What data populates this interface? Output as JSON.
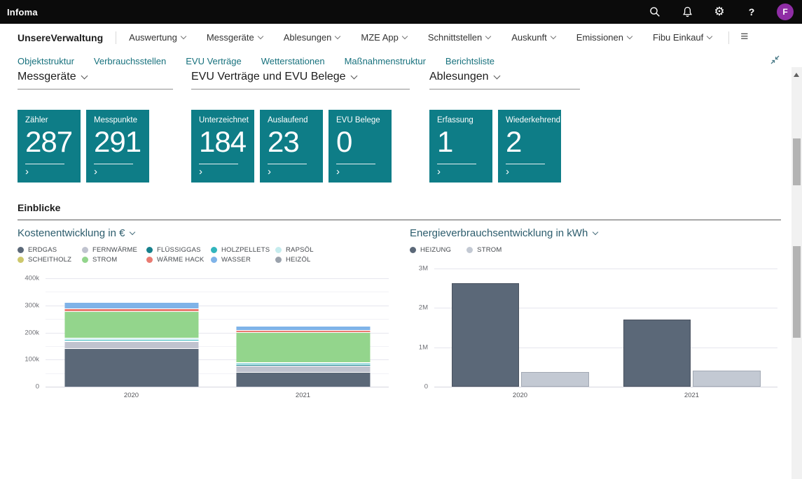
{
  "header": {
    "app_name": "Infoma",
    "avatar_initial": "F",
    "help_label": "?"
  },
  "nav": {
    "root": "UnsereVerwaltung",
    "items": [
      "Auswertung",
      "Messgeräte",
      "Ablesungen",
      "MZE App",
      "Schnittstellen",
      "Auskunft",
      "Emissionen",
      "Fibu Einkauf"
    ]
  },
  "subnav": {
    "items": [
      "Objektstruktur",
      "Verbrauchsstellen",
      "EVU Verträge",
      "Wetterstationen",
      "Maßnahmenstruktur",
      "Berichtsliste"
    ]
  },
  "sections": [
    {
      "title": "Messgeräte",
      "tiles": [
        {
          "label": "Zähler",
          "value": "287"
        },
        {
          "label": "Messpunkte",
          "value": "291"
        }
      ]
    },
    {
      "title": "EVU Verträge und EVU Belege",
      "tiles": [
        {
          "label": "Unterzeichnet",
          "value": "184"
        },
        {
          "label": "Auslaufend",
          "value": "23"
        },
        {
          "label": "EVU Belege",
          "value": "0"
        }
      ]
    },
    {
      "title": "Ablesungen",
      "tiles": [
        {
          "label": "Erfassung",
          "value": "1"
        },
        {
          "label": "Wiederkehrend",
          "value": "2"
        }
      ]
    }
  ],
  "insights": {
    "title": "Einblicke"
  },
  "colors": {
    "tile_teal": "#0e7d87",
    "subnav_link": "#17717d",
    "chart_title": "#2d5d6d",
    "avatar_purple": "#8f2da5"
  },
  "chart_data": [
    {
      "type": "bar",
      "stacked": true,
      "title": "Kostenentwicklung in €",
      "categories": [
        "2020",
        "2021"
      ],
      "series": [
        {
          "name": "ERDGAS",
          "color": "#5b6878",
          "values": [
            140000,
            52000
          ]
        },
        {
          "name": "FERNWÄRME",
          "color": "#c0c3cf",
          "values": [
            25000,
            24000
          ]
        },
        {
          "name": "FLÜSSIGGAS",
          "color": "#16808c",
          "values": [
            2000,
            4000
          ]
        },
        {
          "name": "HOLZPELLETS",
          "color": "#31b5bd",
          "values": [
            5000,
            5000
          ]
        },
        {
          "name": "RAPSÖL",
          "color": "#c5ecee",
          "values": [
            6000,
            4000
          ]
        },
        {
          "name": "SCHEITHOLZ",
          "color": "#cdc86d",
          "values": [
            0,
            0
          ]
        },
        {
          "name": "STROM",
          "color": "#93d58c",
          "values": [
            97000,
            110000
          ]
        },
        {
          "name": "WÄRME HACK",
          "color": "#e97b72",
          "values": [
            11000,
            7000
          ]
        },
        {
          "name": "WASSER",
          "color": "#7fb3e8",
          "values": [
            24000,
            16000
          ]
        },
        {
          "name": "HEIZÖL",
          "color": "#9aa2ac",
          "values": [
            0,
            0
          ]
        }
      ],
      "ylim": [
        0,
        400000
      ],
      "yticks": [
        {
          "value": 400000,
          "label": "400k"
        },
        {
          "value": 350000,
          "label": ""
        },
        {
          "value": 300000,
          "label": "300k"
        },
        {
          "value": 250000,
          "label": ""
        },
        {
          "value": 200000,
          "label": "200k"
        },
        {
          "value": 150000,
          "label": ""
        },
        {
          "value": 100000,
          "label": "100k"
        },
        {
          "value": 50000,
          "label": ""
        },
        {
          "value": 0,
          "label": "0"
        }
      ],
      "bar_width_pct": 39,
      "legend_position": "top",
      "grid": true
    },
    {
      "type": "bar",
      "stacked": false,
      "title": "Energieverbrauchsentwicklung in kWh",
      "categories": [
        "2020",
        "2021"
      ],
      "series": [
        {
          "name": "HEIZUNG",
          "color": "#5b6878",
          "border": "#49525f",
          "values": [
            2620000,
            1700000
          ]
        },
        {
          "name": "STROM",
          "color": "#c3c9d3",
          "border": "#a2a9b4",
          "values": [
            380000,
            400000
          ]
        }
      ],
      "ylim": [
        0,
        3000000
      ],
      "yticks": [
        {
          "value": 3000000,
          "label": "3M"
        },
        {
          "value": 2000000,
          "label": "2M"
        },
        {
          "value": 1000000,
          "label": "1M"
        },
        {
          "value": 0,
          "label": "0"
        }
      ],
      "bar_width_pct": 40,
      "legend_position": "top",
      "grid": true
    }
  ]
}
